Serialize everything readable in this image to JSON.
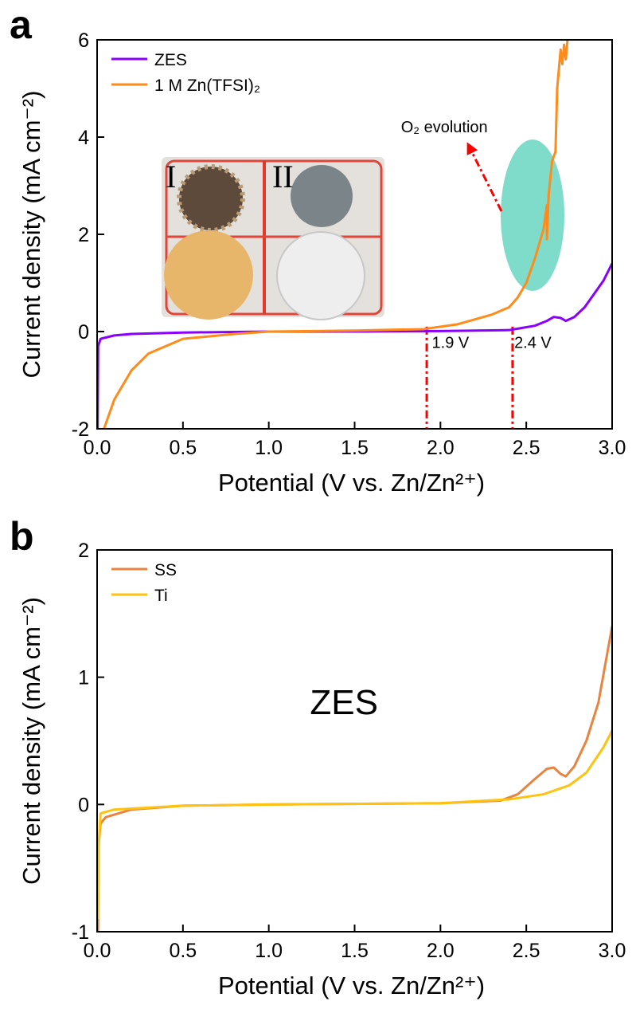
{
  "chart_data": [
    {
      "type": "line",
      "panel": "a",
      "xlabel": "Potential (V vs. Zn/Zn²⁺)",
      "ylabel": "Current density (mA cm⁻²)",
      "xlim": [
        0,
        3
      ],
      "ylim": [
        -2,
        6
      ],
      "xticks": [
        {
          "value": 0,
          "label": "0.0"
        },
        0.5,
        {
          "value": 1,
          "label": "1.0"
        },
        1.5,
        {
          "value": 2,
          "label": "2.0"
        },
        2.5,
        {
          "value": 3,
          "label": "3.0"
        }
      ],
      "yticks": [
        -2,
        0,
        2,
        4,
        6
      ],
      "legend": "upper left",
      "series": [
        {
          "name": "ZES",
          "color": "#8a00ff",
          "x": [
            0.003,
            0.006,
            0.02,
            0.1,
            0.2,
            0.5,
            1.0,
            1.5,
            2.0,
            2.4,
            2.45,
            2.55,
            2.62,
            2.66,
            2.7,
            2.73,
            2.78,
            2.84,
            2.9,
            2.95,
            3.0
          ],
          "values": [
            -2,
            -0.3,
            -0.15,
            -0.08,
            -0.05,
            -0.02,
            0,
            0,
            0.01,
            0.03,
            0.06,
            0.12,
            0.22,
            0.3,
            0.28,
            0.22,
            0.3,
            0.5,
            0.8,
            1.05,
            1.4
          ]
        },
        {
          "name": "1 M Zn(TFSI)₂",
          "color": "#ff8c1a",
          "x": [
            0.04,
            0.1,
            0.2,
            0.3,
            0.5,
            0.8,
            1.0,
            1.5,
            1.9,
            2.1,
            2.3,
            2.4,
            2.45,
            2.5,
            2.55,
            2.6,
            2.62,
            2.62,
            2.63,
            2.65,
            2.67,
            2.68,
            2.7,
            2.71,
            2.72,
            2.73,
            2.74
          ],
          "values": [
            -2,
            -1.4,
            -0.8,
            -0.45,
            -0.15,
            -0.05,
            0,
            0.02,
            0.05,
            0.15,
            0.35,
            0.5,
            0.7,
            1.0,
            1.5,
            2.1,
            2.6,
            1.9,
            2.8,
            3.5,
            3.7,
            5.0,
            5.8,
            5.5,
            5.9,
            5.6,
            6.0
          ]
        }
      ],
      "vlines": [
        {
          "x": 1.92,
          "y": 0.1,
          "color": "#ff0000"
        },
        {
          "x": 2.42,
          "y": 0.1,
          "color": "#ff0000"
        }
      ],
      "annotations": [
        {
          "text": "1.9 V",
          "x": 1.95,
          "y": -0.34
        },
        {
          "text": "2.4 V",
          "x": 2.43,
          "y": -0.34
        },
        {
          "text": "O₂ evolution",
          "x": 1.77,
          "y": 4.1
        }
      ],
      "inset_labels": [
        "I",
        "II"
      ]
    },
    {
      "type": "line",
      "panel": "b",
      "xlabel": "Potential (V vs. Zn/Zn²⁺)",
      "ylabel": "Current density (mA cm⁻²)",
      "xlim": [
        0,
        3
      ],
      "ylim": [
        -1,
        2
      ],
      "xticks": [
        {
          "value": 0,
          "label": "0.0"
        },
        0.5,
        {
          "value": 1,
          "label": "1.0"
        },
        1.5,
        {
          "value": 2,
          "label": "2.0"
        },
        2.5,
        {
          "value": 3,
          "label": "3.0"
        }
      ],
      "yticks": [
        -1,
        0,
        1,
        2
      ],
      "legend": "upper left",
      "series": [
        {
          "name": "SS",
          "color": "#e8843f",
          "x": [
            0.005,
            0.01,
            0.02,
            0.05,
            0.2,
            0.5,
            1.0,
            2.0,
            2.35,
            2.45,
            2.55,
            2.62,
            2.66,
            2.7,
            2.73,
            2.78,
            2.85,
            2.92,
            3.0
          ],
          "values": [
            -1,
            -0.3,
            -0.15,
            -0.1,
            -0.04,
            -0.01,
            0,
            0.01,
            0.03,
            0.08,
            0.2,
            0.28,
            0.29,
            0.24,
            0.22,
            0.3,
            0.5,
            0.8,
            1.4
          ]
        },
        {
          "name": "Ti",
          "color": "#ffc20e",
          "x": [
            0.005,
            0.01,
            0.02,
            0.1,
            0.5,
            1.0,
            2.0,
            2.4,
            2.6,
            2.75,
            2.85,
            2.95,
            3.0
          ],
          "values": [
            -0.9,
            -0.3,
            -0.07,
            -0.04,
            -0.01,
            0,
            0.01,
            0.04,
            0.08,
            0.15,
            0.25,
            0.45,
            0.58
          ]
        }
      ],
      "annotations": [
        {
          "text": "ZES",
          "x": 1.24,
          "y": 0.71,
          "color": "#8a00ff"
        }
      ]
    }
  ]
}
